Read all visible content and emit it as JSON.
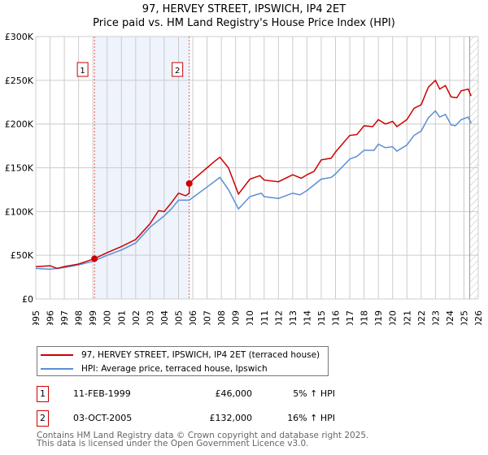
{
  "header": {
    "title": "97, HERVEY STREET, IPSWICH, IP4 2ET",
    "subtitle": "Price paid vs. HM Land Registry's House Price Index (HPI)"
  },
  "colors": {
    "property": "#cc0000",
    "hpi": "#5b8fd4",
    "shade": "#eef3fc"
  },
  "chart_data": {
    "type": "line",
    "title": "97, HERVEY STREET, IPSWICH, IP4 2ET - Price paid vs. HM Land Registry's House Price Index (HPI)",
    "xlim": [
      1995,
      2026
    ],
    "ylim": [
      0,
      300000
    ],
    "x_ticks": [
      "1995",
      "1996",
      "1997",
      "1998",
      "1999",
      "2000",
      "2001",
      "2002",
      "2003",
      "2004",
      "2005",
      "2006",
      "2007",
      "2008",
      "2009",
      "2010",
      "2011",
      "2012",
      "2013",
      "2014",
      "2015",
      "2016",
      "2017",
      "2018",
      "2019",
      "2020",
      "2021",
      "2022",
      "2023",
      "2024",
      "2025",
      "2026"
    ],
    "y_ticks": [
      {
        "v": 0,
        "l": "£0"
      },
      {
        "v": 50000,
        "l": "£50K"
      },
      {
        "v": 100000,
        "l": "£100K"
      },
      {
        "v": 150000,
        "l": "£150K"
      },
      {
        "v": 200000,
        "l": "£200K"
      },
      {
        "v": 250000,
        "l": "£250K"
      },
      {
        "v": 300000,
        "l": "£300K"
      }
    ],
    "grid": true,
    "series": [
      {
        "name": "97, HERVEY STREET, IPSWICH, IP4 2ET (terraced house)",
        "x": [
          1995,
          1996,
          1996.5,
          1997,
          1998,
          1999.1,
          2000,
          2001,
          2002,
          2003,
          2003.6,
          2004,
          2004.5,
          2005,
          2005.5,
          2005.75,
          2005.76,
          2006,
          2007,
          2007.5,
          2007.9,
          2008.5,
          2009.2,
          2010,
          2010.7,
          2011,
          2012,
          2013,
          2013.6,
          2014,
          2014.5,
          2015,
          2015.7,
          2016,
          2017,
          2017.5,
          2018,
          2018.6,
          2019,
          2019.5,
          2020,
          2020.3,
          2021,
          2021.5,
          2022,
          2022.5,
          2023,
          2023.3,
          2023.7,
          2024.1,
          2024.5,
          2024.8,
          2025.3,
          2025.5
        ],
        "y": [
          37000,
          38000,
          35000,
          37000,
          40000,
          46000,
          53000,
          60000,
          68000,
          86000,
          101000,
          100000,
          110000,
          121000,
          118000,
          121000,
          132000,
          136000,
          150000,
          157000,
          162000,
          150000,
          120000,
          137000,
          141000,
          136000,
          134000,
          142000,
          138000,
          142000,
          146000,
          159000,
          161000,
          168000,
          187000,
          188000,
          198000,
          197000,
          205000,
          200000,
          203000,
          197000,
          205000,
          218000,
          222000,
          242000,
          250000,
          240000,
          244000,
          231000,
          230000,
          238000,
          240000,
          232000
        ]
      },
      {
        "name": "HPI: Average price, terraced house, Ipswich",
        "x": [
          1995,
          1996,
          1997,
          1998,
          1999,
          2000,
          2001,
          2002,
          2003,
          2004,
          2004.5,
          2005,
          2005.75,
          2006,
          2007,
          2007.9,
          2008.5,
          2009.2,
          2010,
          2010.8,
          2011,
          2012,
          2013,
          2013.5,
          2014,
          2015,
          2015.7,
          2016,
          2017,
          2017.5,
          2018,
          2018.7,
          2019,
          2019.5,
          2020,
          2020.3,
          2021,
          2021.5,
          2022,
          2022.5,
          2023,
          2023.3,
          2023.7,
          2024.1,
          2024.4,
          2024.8,
          2025.3,
          2025.5
        ],
        "y": [
          35000,
          34000,
          36000,
          39000,
          43000,
          50000,
          56000,
          64000,
          82000,
          95000,
          103000,
          113000,
          113000,
          116000,
          128000,
          139000,
          125000,
          103000,
          117000,
          121000,
          117000,
          115000,
          121000,
          119000,
          124000,
          137000,
          139000,
          143000,
          160000,
          163000,
          170000,
          170000,
          177000,
          173000,
          174000,
          169000,
          176000,
          187000,
          192000,
          207000,
          215000,
          208000,
          211000,
          199000,
          198000,
          205000,
          208000,
          201000
        ]
      }
    ],
    "sales": [
      {
        "n": "1",
        "x": 1999.11,
        "y": 46000
      },
      {
        "n": "2",
        "x": 2005.75,
        "y": 132000
      }
    ],
    "hatch_from": 2025.4
  },
  "legend": {
    "property": "97, HERVEY STREET, IPSWICH, IP4 2ET (terraced house)",
    "hpi": "HPI: Average price, terraced house, Ipswich"
  },
  "transactions": [
    {
      "n": "1",
      "date": "11-FEB-1999",
      "price": "£46,000",
      "hpi": "5% ↑ HPI"
    },
    {
      "n": "2",
      "date": "03-OCT-2005",
      "price": "£132,000",
      "hpi": "16% ↑ HPI"
    }
  ],
  "footer": {
    "line1": "Contains HM Land Registry data © Crown copyright and database right 2025.",
    "line2": "This data is licensed under the Open Government Licence v3.0."
  }
}
